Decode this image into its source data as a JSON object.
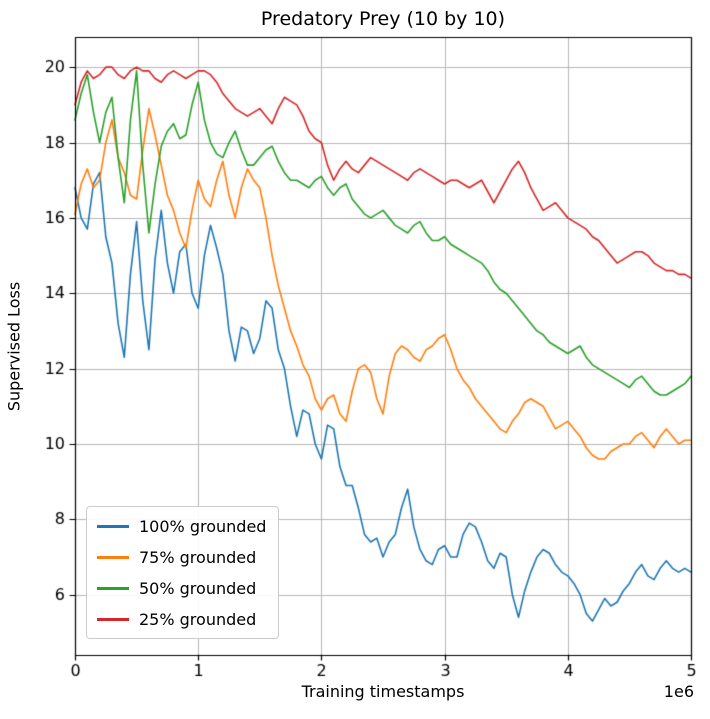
{
  "figure": {
    "title": "Predatory Prey (10 by 10)",
    "xlabel": "Training timestamps",
    "ylabel": "Supervised Loss",
    "x_offset_label": "1e6"
  },
  "chart_data": {
    "type": "line",
    "title": "Predatory Prey (10 by 10)",
    "xlabel": "Training timestamps",
    "ylabel": "Supervised Loss",
    "x_offset_label": "1e6",
    "x_unit_multiplier": 1000000,
    "xlim": [
      0,
      5
    ],
    "ylim": [
      4.4,
      20.8
    ],
    "x_ticks": [
      0,
      1,
      2,
      3,
      4,
      5
    ],
    "y_ticks": [
      6,
      8,
      10,
      12,
      14,
      16,
      18,
      20
    ],
    "grid": true,
    "grid_color": "#b0b0b0",
    "legend_position": "lower left",
    "x_start": 0,
    "x_step": 0.05,
    "series": [
      {
        "name": "100% grounded",
        "color": "#1f77b4",
        "values": [
          16.8,
          16.0,
          15.7,
          16.9,
          17.2,
          15.5,
          14.8,
          13.2,
          12.3,
          14.5,
          15.9,
          13.8,
          12.5,
          14.9,
          16.2,
          14.8,
          14.0,
          15.1,
          15.3,
          14.0,
          13.6,
          15.0,
          15.8,
          15.2,
          14.5,
          13.0,
          12.2,
          13.1,
          13.0,
          12.4,
          12.8,
          13.8,
          13.6,
          12.5,
          12.0,
          11.0,
          10.2,
          10.9,
          10.8,
          10.0,
          9.6,
          10.5,
          10.4,
          9.4,
          8.9,
          8.9,
          8.3,
          7.6,
          7.4,
          7.5,
          7.0,
          7.4,
          7.6,
          8.3,
          8.8,
          7.8,
          7.2,
          6.9,
          6.8,
          7.2,
          7.3,
          7.0,
          7.0,
          7.6,
          7.9,
          7.8,
          7.4,
          6.9,
          6.7,
          7.1,
          7.0,
          6.0,
          5.4,
          6.1,
          6.6,
          7.0,
          7.2,
          7.1,
          6.8,
          6.6,
          6.5,
          6.3,
          6.0,
          5.5,
          5.3,
          5.6,
          5.9,
          5.7,
          5.8,
          6.1,
          6.3,
          6.6,
          6.8,
          6.5,
          6.4,
          6.7,
          6.9,
          6.7,
          6.6,
          6.7,
          6.6
        ]
      },
      {
        "name": "75% grounded",
        "color": "#ff7f0e",
        "values": [
          16.1,
          16.9,
          17.3,
          16.8,
          17.0,
          18.0,
          18.6,
          17.6,
          17.2,
          16.6,
          16.5,
          17.8,
          18.9,
          18.2,
          17.4,
          16.6,
          16.2,
          15.6,
          15.2,
          16.2,
          17.0,
          16.5,
          16.3,
          17.0,
          17.5,
          16.6,
          16.0,
          16.8,
          17.3,
          17.0,
          16.8,
          16.0,
          15.0,
          14.2,
          13.6,
          13.0,
          12.6,
          12.1,
          11.8,
          11.2,
          10.9,
          11.2,
          11.3,
          10.8,
          10.6,
          11.4,
          12.0,
          12.1,
          11.9,
          11.2,
          10.8,
          11.8,
          12.4,
          12.6,
          12.5,
          12.3,
          12.2,
          12.5,
          12.6,
          12.8,
          12.9,
          12.5,
          12.0,
          11.7,
          11.5,
          11.2,
          11.0,
          10.8,
          10.6,
          10.4,
          10.3,
          10.6,
          10.8,
          11.1,
          11.2,
          11.1,
          11.0,
          10.7,
          10.4,
          10.5,
          10.6,
          10.4,
          10.2,
          9.9,
          9.7,
          9.6,
          9.6,
          9.8,
          9.9,
          10.0,
          10.0,
          10.2,
          10.3,
          10.1,
          9.9,
          10.2,
          10.4,
          10.2,
          10.0,
          10.1,
          10.1
        ]
      },
      {
        "name": "50% grounded",
        "color": "#2ca02c",
        "values": [
          18.6,
          19.3,
          19.8,
          18.8,
          18.0,
          18.8,
          19.2,
          17.6,
          16.4,
          18.6,
          19.9,
          17.4,
          15.6,
          16.9,
          17.9,
          18.3,
          18.5,
          18.1,
          18.2,
          19.0,
          19.6,
          18.6,
          18.0,
          17.7,
          17.6,
          18.0,
          18.3,
          17.8,
          17.4,
          17.4,
          17.6,
          17.8,
          17.9,
          17.5,
          17.2,
          17.0,
          17.0,
          16.9,
          16.8,
          17.0,
          17.1,
          16.8,
          16.6,
          16.8,
          16.9,
          16.5,
          16.3,
          16.1,
          16.0,
          16.1,
          16.2,
          16.0,
          15.8,
          15.7,
          15.6,
          15.8,
          15.9,
          15.6,
          15.4,
          15.4,
          15.5,
          15.3,
          15.2,
          15.1,
          15.0,
          14.9,
          14.8,
          14.6,
          14.3,
          14.1,
          14.0,
          13.8,
          13.6,
          13.4,
          13.2,
          13.0,
          12.9,
          12.7,
          12.6,
          12.5,
          12.4,
          12.5,
          12.6,
          12.3,
          12.1,
          12.0,
          11.9,
          11.8,
          11.7,
          11.6,
          11.5,
          11.7,
          11.8,
          11.6,
          11.4,
          11.3,
          11.3,
          11.4,
          11.5,
          11.6,
          11.8
        ]
      },
      {
        "name": "25% grounded",
        "color": "#d62728",
        "values": [
          19.0,
          19.6,
          19.9,
          19.7,
          19.8,
          20.0,
          20.0,
          19.8,
          19.7,
          19.9,
          20.0,
          19.9,
          19.9,
          19.7,
          19.6,
          19.8,
          19.9,
          19.8,
          19.7,
          19.8,
          19.9,
          19.9,
          19.8,
          19.6,
          19.3,
          19.1,
          18.9,
          18.8,
          18.7,
          18.8,
          18.9,
          18.7,
          18.5,
          18.9,
          19.2,
          19.1,
          19.0,
          18.7,
          18.3,
          18.1,
          18.0,
          17.4,
          17.0,
          17.3,
          17.5,
          17.3,
          17.2,
          17.4,
          17.6,
          17.5,
          17.4,
          17.3,
          17.2,
          17.1,
          17.0,
          17.2,
          17.3,
          17.2,
          17.1,
          17.0,
          16.9,
          17.0,
          17.0,
          16.9,
          16.8,
          16.9,
          17.0,
          16.7,
          16.4,
          16.7,
          17.0,
          17.3,
          17.5,
          17.2,
          16.8,
          16.5,
          16.2,
          16.3,
          16.4,
          16.2,
          16.0,
          15.9,
          15.8,
          15.7,
          15.5,
          15.4,
          15.2,
          15.0,
          14.8,
          14.9,
          15.0,
          15.1,
          15.1,
          15.0,
          14.8,
          14.7,
          14.6,
          14.6,
          14.5,
          14.5,
          14.4
        ]
      }
    ]
  }
}
